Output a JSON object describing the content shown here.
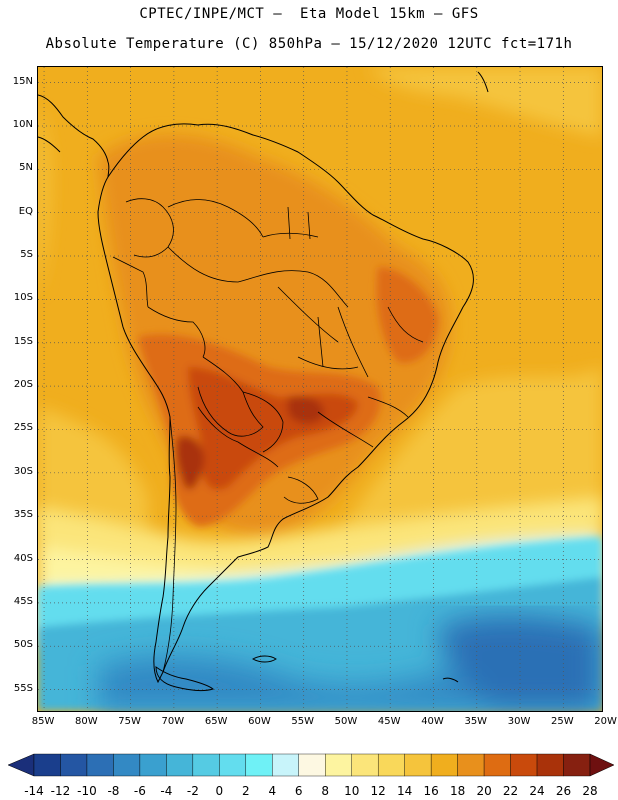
{
  "header": {
    "line1": "CPTEC/INPE/MCT –  Eta Model 15km – GFS",
    "line2": "Absolute Temperature (C) 850hPa – 15/12/2020 12UTC fct=171h"
  },
  "map": {
    "latitudes": [
      "15N",
      "10N",
      "5N",
      "EQ",
      "5S",
      "10S",
      "15S",
      "20S",
      "25S",
      "30S",
      "35S",
      "40S",
      "45S",
      "50S",
      "55S"
    ],
    "longitudes": [
      "85W",
      "80W",
      "75W",
      "70W",
      "65W",
      "60W",
      "55W",
      "50W",
      "45W",
      "40W",
      "35W",
      "30W",
      "25W",
      "20W"
    ],
    "grid_lines": "dotted",
    "lon_range": [
      -85,
      -20
    ],
    "lat_range": [
      15,
      -58
    ]
  },
  "colorbar": {
    "labels": [
      "-14",
      "-12",
      "-10",
      "-8",
      "-6",
      "-4",
      "-2",
      "0",
      "2",
      "4",
      "6",
      "8",
      "10",
      "12",
      "14",
      "16",
      "18",
      "20",
      "22",
      "24",
      "26",
      "28"
    ],
    "colors": [
      "#1a3e8c",
      "#2456a3",
      "#2c6fb5",
      "#3389c4",
      "#3aa0cf",
      "#45b5d8",
      "#55cbe3",
      "#63ddee",
      "#6ff1f6",
      "#c8f4fa",
      "#fdf8e2",
      "#fdf4a0",
      "#fbe57a",
      "#f9d85a",
      "#f5c43c",
      "#f0ae1e",
      "#e8901c",
      "#de6c12",
      "#c94a0c",
      "#a9320a",
      "#862010"
    ],
    "under_color": "#1a2f7a",
    "over_color": "#6e1010"
  }
}
